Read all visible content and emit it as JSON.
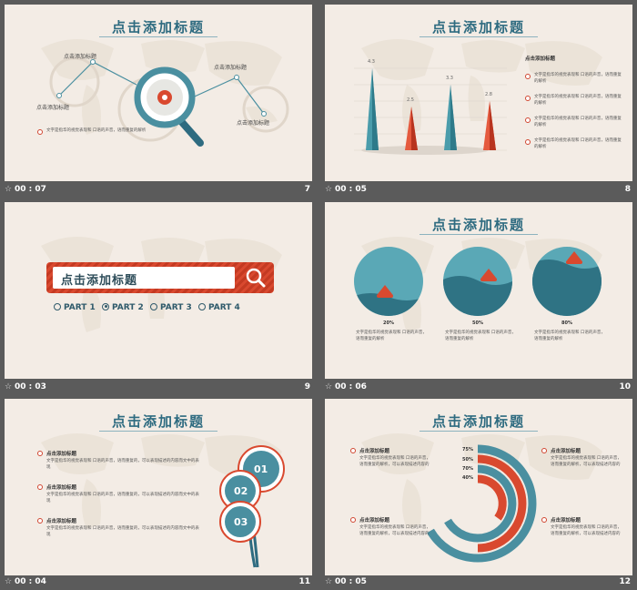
{
  "slides": [
    {
      "title": "点击添加标题",
      "time": "00 : 07",
      "num": "7",
      "labels": [
        "点击添加标题",
        "点击添加标题",
        "点击添加标题",
        "点击添加标题"
      ],
      "caption": "文字是指华的视觉表现和  口语的声音，语言重复的意思，可以表现描述的内容而文中的表现。",
      "caption_short": "文字是指华的视觉表现和   口语的声音，语而重复的解析"
    },
    {
      "title": "点击添加标题",
      "time": "00 : 05",
      "num": "8",
      "bar_labels": [
        "4.3",
        "2.5",
        "3.3",
        "2.8"
      ],
      "side_head": "点击添加标题",
      "side_items": [
        "文字是指华的视觉表现和  口语的声音，语而重复的解析",
        "文字是指华的视觉表现和  口语的声音，语而重复的解析",
        "文字是指华的视觉表现和  口语的声音，语而重复的解析",
        "文字是指华的视觉表现和  口语的声音，语而重复的解析"
      ]
    },
    {
      "title": "点击添加标题",
      "time": "00 : 03",
      "num": "9",
      "parts": [
        "PART 1",
        "PART 2",
        "PART 3",
        "PART 4"
      ],
      "selected_part": "PART 2"
    },
    {
      "title": "点击添加标题",
      "time": "00 : 06",
      "num": "10",
      "pcts": [
        "20%",
        "50%",
        "80%"
      ],
      "caption": "文字是指华的视觉表现和  口语的声音，语而重复的解析"
    },
    {
      "title": "点击添加标题",
      "time": "00 : 04",
      "num": "11",
      "items": [
        {
          "head": "点击添加标题",
          "text": "文字是指华的视觉表现和  口语的声音，语而重复的，可以表现描述的内容而文中的表现"
        },
        {
          "head": "点击添加标题",
          "text": "文字是指华的视觉表现和  口语的声音，语而重复的，可以表现描述的内容而文中的表现"
        },
        {
          "head": "点击添加标题",
          "text": "文字是指华的视觉表现和  口语的声音，语而重复的，可以表现描述的内容而文中的表现"
        }
      ],
      "circles": [
        "01",
        "02",
        "03"
      ]
    },
    {
      "title": "点击添加标题",
      "time": "00 : 05",
      "num": "12",
      "ring_labels": [
        "75%",
        "50%",
        "70%",
        "40%"
      ],
      "items": [
        {
          "head": "点击添加标题",
          "text": "文字是指华的视觉表现和  口语的声音，语而重复的解析，可以表现描述内容的"
        },
        {
          "head": "点击添加标题",
          "text": "文字是指华的视觉表现和  口语的声音，语而重复的解析，可以表现描述内容的"
        },
        {
          "head": "点击添加标题",
          "text": "文字是指华的视觉表现和  口语的声音，语而重复的解析，可以表现描述内容的"
        },
        {
          "head": "点击添加标题",
          "text": "文字是指华的视觉表现和  口语的声音，语而重复的解析，可以表现描述内容的"
        }
      ]
    }
  ],
  "colors": {
    "teal": "#4a8fa0",
    "red": "#d9492f",
    "dark": "#2e6b80",
    "bg": "#f3ece5",
    "frame": "#5b5b5b"
  },
  "icons": [
    "star-icon",
    "magnifier-icon",
    "buoy-icon",
    "gear-icon"
  ]
}
